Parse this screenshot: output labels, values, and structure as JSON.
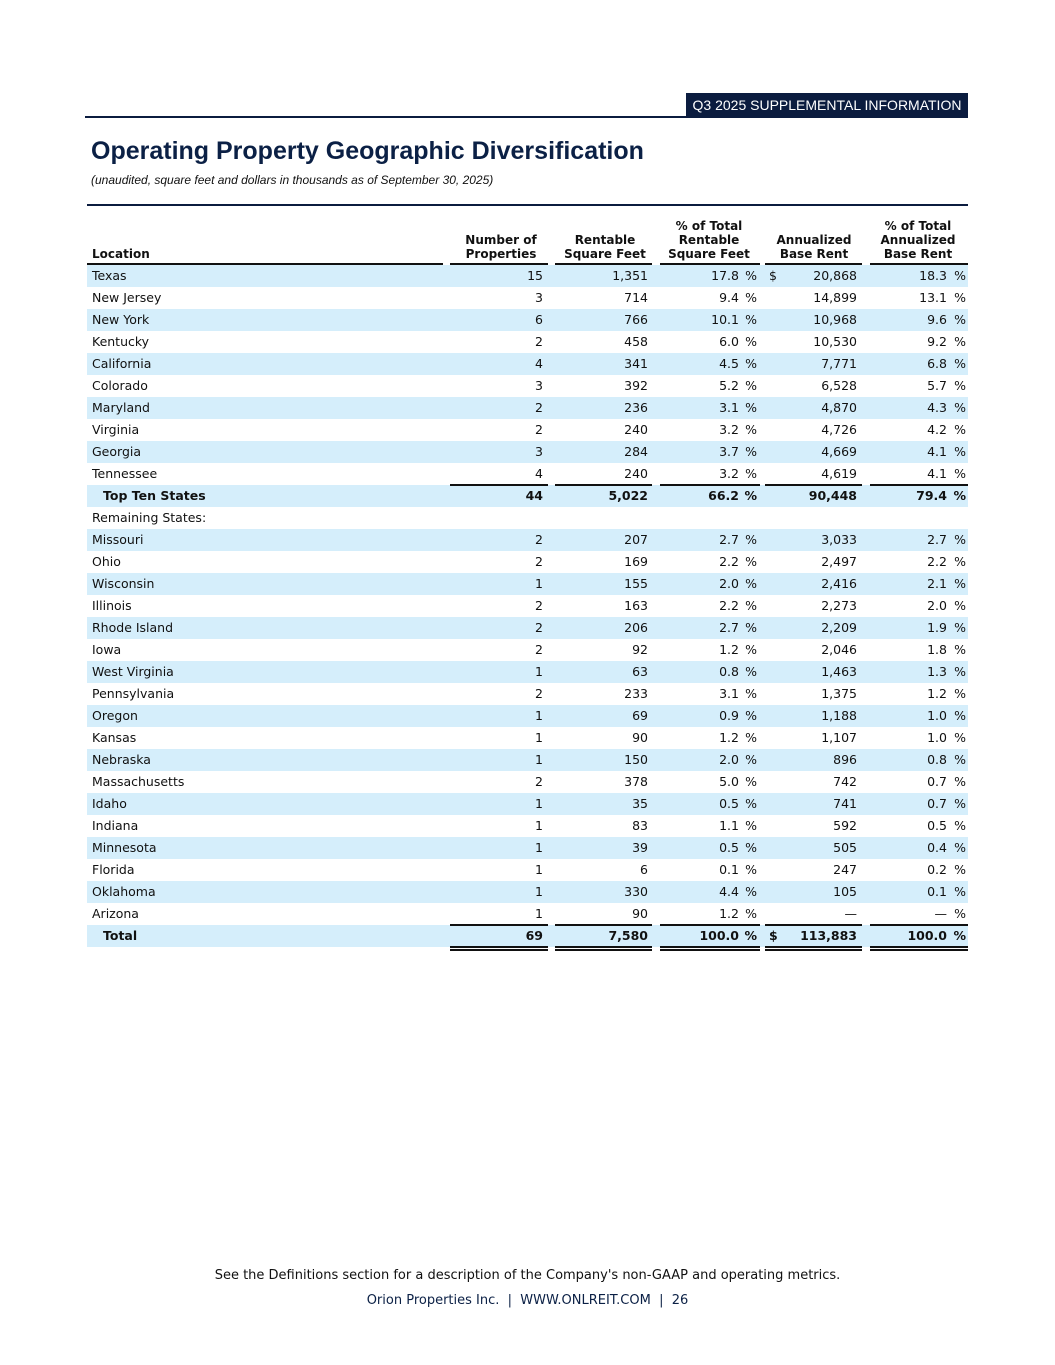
{
  "header": {
    "banner": "Q3 2025 SUPPLEMENTAL INFORMATION",
    "title": "Operating Property Geographic Diversification",
    "subtitle": "(unaudited, square feet and dollars in thousands as of September 30, 2025)"
  },
  "table": {
    "columns": [
      [
        "Location"
      ],
      [
        "Number of",
        "Properties"
      ],
      [
        "Rentable",
        "Square Feet"
      ],
      [
        "% of Total",
        "Rentable",
        "Square Feet"
      ],
      [
        "Annualized",
        "Base Rent"
      ],
      [
        "% of Total",
        "Annualized",
        "Base Rent"
      ]
    ],
    "rows": [
      {
        "kind": "state",
        "cells": [
          "Texas",
          "15",
          "1,351",
          "17.8",
          "%",
          "$",
          "20,868",
          "18.3",
          "%"
        ]
      },
      {
        "kind": "state",
        "cells": [
          "New Jersey",
          "3",
          "714",
          "9.4",
          "%",
          null,
          "14,899",
          "13.1",
          "%"
        ]
      },
      {
        "kind": "state",
        "cells": [
          "New York",
          "6",
          "766",
          "10.1",
          "%",
          null,
          "10,968",
          "9.6",
          "%"
        ]
      },
      {
        "kind": "state",
        "cells": [
          "Kentucky",
          "2",
          "458",
          "6.0",
          "%",
          null,
          "10,530",
          "9.2",
          "%"
        ]
      },
      {
        "kind": "state",
        "cells": [
          "California",
          "4",
          "341",
          "4.5",
          "%",
          null,
          "7,771",
          "6.8",
          "%"
        ]
      },
      {
        "kind": "state",
        "cells": [
          "Colorado",
          "3",
          "392",
          "5.2",
          "%",
          null,
          "6,528",
          "5.7",
          "%"
        ]
      },
      {
        "kind": "state",
        "cells": [
          "Maryland",
          "2",
          "236",
          "3.1",
          "%",
          null,
          "4,870",
          "4.3",
          "%"
        ]
      },
      {
        "kind": "state",
        "cells": [
          "Virginia",
          "2",
          "240",
          "3.2",
          "%",
          null,
          "4,726",
          "4.2",
          "%"
        ]
      },
      {
        "kind": "state",
        "cells": [
          "Georgia",
          "3",
          "284",
          "3.7",
          "%",
          null,
          "4,669",
          "4.1",
          "%"
        ]
      },
      {
        "kind": "state",
        "cells": [
          "Tennessee",
          "4",
          "240",
          "3.2",
          "%",
          null,
          "4,619",
          "4.1",
          "%"
        ]
      },
      {
        "kind": "subtotal",
        "cells": [
          "Top Ten States",
          "44",
          "5,022",
          "66.2",
          "%",
          null,
          "90,448",
          "79.4",
          "%"
        ]
      },
      {
        "kind": "label",
        "cells": [
          "Remaining States:",
          null,
          null,
          null,
          null,
          null,
          null,
          null,
          null
        ]
      },
      {
        "kind": "state",
        "cells": [
          "Missouri",
          "2",
          "207",
          "2.7",
          "%",
          null,
          "3,033",
          "2.7",
          "%"
        ]
      },
      {
        "kind": "state",
        "cells": [
          "Ohio",
          "2",
          "169",
          "2.2",
          "%",
          null,
          "2,497",
          "2.2",
          "%"
        ]
      },
      {
        "kind": "state",
        "cells": [
          "Wisconsin",
          "1",
          "155",
          "2.0",
          "%",
          null,
          "2,416",
          "2.1",
          "%"
        ]
      },
      {
        "kind": "state",
        "cells": [
          "Illinois",
          "2",
          "163",
          "2.2",
          "%",
          null,
          "2,273",
          "2.0",
          "%"
        ]
      },
      {
        "kind": "state",
        "cells": [
          "Rhode Island",
          "2",
          "206",
          "2.7",
          "%",
          null,
          "2,209",
          "1.9",
          "%"
        ]
      },
      {
        "kind": "state",
        "cells": [
          "Iowa",
          "2",
          "92",
          "1.2",
          "%",
          null,
          "2,046",
          "1.8",
          "%"
        ]
      },
      {
        "kind": "state",
        "cells": [
          "West Virginia",
          "1",
          "63",
          "0.8",
          "%",
          null,
          "1,463",
          "1.3",
          "%"
        ]
      },
      {
        "kind": "state",
        "cells": [
          "Pennsylvania",
          "2",
          "233",
          "3.1",
          "%",
          null,
          "1,375",
          "1.2",
          "%"
        ]
      },
      {
        "kind": "state",
        "cells": [
          "Oregon",
          "1",
          "69",
          "0.9",
          "%",
          null,
          "1,188",
          "1.0",
          "%"
        ]
      },
      {
        "kind": "state",
        "cells": [
          "Kansas",
          "1",
          "90",
          "1.2",
          "%",
          null,
          "1,107",
          "1.0",
          "%"
        ]
      },
      {
        "kind": "state",
        "cells": [
          "Nebraska",
          "1",
          "150",
          "2.0",
          "%",
          null,
          "896",
          "0.8",
          "%"
        ]
      },
      {
        "kind": "state",
        "cells": [
          "Massachusetts",
          "2",
          "378",
          "5.0",
          "%",
          null,
          "742",
          "0.7",
          "%"
        ]
      },
      {
        "kind": "state",
        "cells": [
          "Idaho",
          "1",
          "35",
          "0.5",
          "%",
          null,
          "741",
          "0.7",
          "%"
        ]
      },
      {
        "kind": "state",
        "cells": [
          "Indiana",
          "1",
          "83",
          "1.1",
          "%",
          null,
          "592",
          "0.5",
          "%"
        ]
      },
      {
        "kind": "state",
        "cells": [
          "Minnesota",
          "1",
          "39",
          "0.5",
          "%",
          null,
          "505",
          "0.4",
          "%"
        ]
      },
      {
        "kind": "state",
        "cells": [
          "Florida",
          "1",
          "6",
          "0.1",
          "%",
          null,
          "247",
          "0.2",
          "%"
        ]
      },
      {
        "kind": "state",
        "cells": [
          "Oklahoma",
          "1",
          "330",
          "4.4",
          "%",
          null,
          "105",
          "0.1",
          "%"
        ]
      },
      {
        "kind": "state",
        "cells": [
          "Arizona",
          "1",
          "90",
          "1.2",
          "%",
          null,
          "—",
          "—",
          "%"
        ]
      },
      {
        "kind": "total",
        "cells": [
          "Total",
          "69",
          "7,580",
          "100.0",
          "%",
          "$",
          "113,883",
          "100.0",
          "%"
        ]
      }
    ]
  },
  "footer": {
    "note": "See the Definitions section for a description of the Company's non-GAAP and operating metrics.",
    "line": "Orion Properties Inc.  |  WWW.ONLREIT.COM  |  26"
  }
}
